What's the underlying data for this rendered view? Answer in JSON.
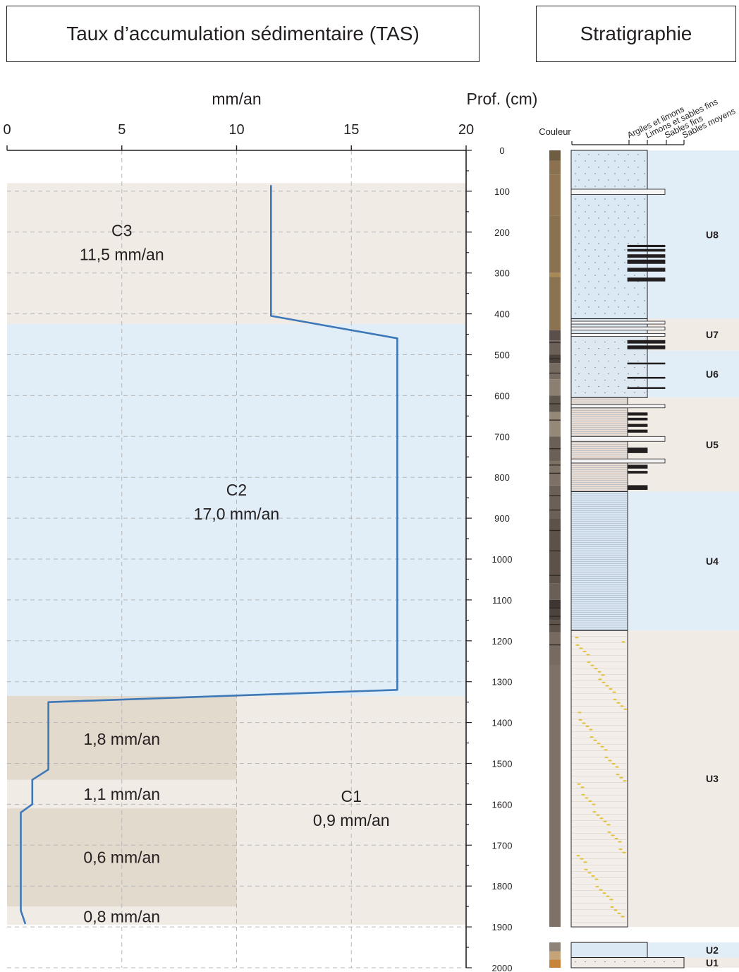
{
  "titles": {
    "left": "Taux d’accumulation sédimentaire (TAS)",
    "right": "Stratigraphie"
  },
  "chart_data": {
    "type": "line",
    "xlabel": "mm/an",
    "ylabel": "Prof. (cm)",
    "xlim": [
      0,
      20
    ],
    "ylim": [
      0,
      2000
    ],
    "x_ticks": [
      "0",
      "5",
      "10",
      "15",
      "20"
    ],
    "y_ticks": [
      "0",
      "100",
      "200",
      "300",
      "400",
      "500",
      "600",
      "700",
      "800",
      "900",
      "1000",
      "1100",
      "1200",
      "1300",
      "1400",
      "1500",
      "1600",
      "1700",
      "1800",
      "1900",
      "2000"
    ],
    "grid": true,
    "series": [
      {
        "color": "#3d78b8",
        "points": [
          [
            11.5,
            85
          ],
          [
            11.5,
            405
          ],
          [
            17.0,
            460
          ],
          [
            17.0,
            1320
          ],
          [
            1.8,
            1350
          ],
          [
            1.8,
            1515
          ],
          [
            1.1,
            1540
          ],
          [
            1.1,
            1600
          ],
          [
            0.6,
            1620
          ],
          [
            0.6,
            1860
          ],
          [
            0.8,
            1893
          ]
        ]
      }
    ],
    "bands": [
      {
        "from": 80,
        "to": 425,
        "color": "#f1ebe6"
      },
      {
        "from": 425,
        "to": 1335,
        "color": "#e1eef7"
      },
      {
        "from": 1335,
        "to": 1895,
        "color": "#f1ebe6"
      }
    ],
    "inner_bands": [
      {
        "from": 1335,
        "to": 1540,
        "x_to": 10,
        "color": "#e3dace"
      },
      {
        "from": 1610,
        "to": 1850,
        "x_to": 10,
        "color": "#e3dace"
      }
    ],
    "annotations": [
      {
        "id": "c3",
        "lines": [
          "C3",
          "11,5 mm/an"
        ],
        "x": 5,
        "y": 225
      },
      {
        "id": "c2",
        "lines": [
          "C2",
          "17,0 mm/an"
        ],
        "x": 10,
        "y": 860
      },
      {
        "id": "r18",
        "lines": [
          "1,8 mm/an"
        ],
        "x": 5,
        "y": 1440
      },
      {
        "id": "r11",
        "lines": [
          "1,1 mm/an"
        ],
        "x": 5,
        "y": 1575
      },
      {
        "id": "c1",
        "lines": [
          "C1",
          "0,9 mm/an"
        ],
        "x": 15,
        "y": 1610
      },
      {
        "id": "r06",
        "lines": [
          "0,6 mm/an"
        ],
        "x": 5,
        "y": 1730
      },
      {
        "id": "r08",
        "lines": [
          "0,8 mm/an"
        ],
        "x": 5,
        "y": 1875
      }
    ]
  },
  "stratigraphy": {
    "color_label": "Couleur",
    "grain_classes": [
      "Argiles et limons",
      "Limons et sables fins",
      "Sables fins",
      "Sables moyens"
    ],
    "units": [
      {
        "name": "U8",
        "from": 0,
        "to": 412,
        "color": "#e1eef7"
      },
      {
        "name": "U7",
        "from": 412,
        "to": 490,
        "color": "#f1ebe6"
      },
      {
        "name": "U6",
        "from": 490,
        "to": 605,
        "color": "#e1eef7"
      },
      {
        "name": "U5",
        "from": 605,
        "to": 835,
        "color": "#f1ebe6"
      },
      {
        "name": "U4",
        "from": 835,
        "to": 1175,
        "color": "#e1eef7"
      },
      {
        "name": "U3",
        "from": 1175,
        "to": 1900,
        "color": "#f1ebe6"
      },
      {
        "name": "U2",
        "from": 1938,
        "to": 1975,
        "color": "#e1eef7"
      },
      {
        "name": "U1",
        "from": 1975,
        "to": 2000,
        "color": "#f1ebe6"
      }
    ]
  }
}
